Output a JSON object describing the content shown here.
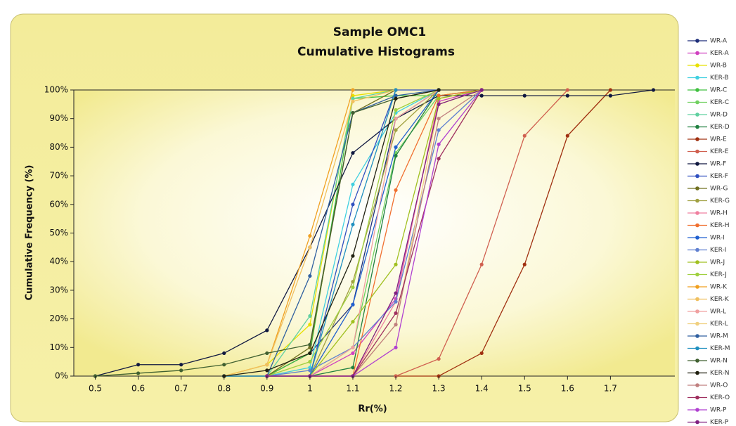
{
  "chart_data": {
    "type": "line",
    "title": "Sample OMC1",
    "subtitle": "Cumulative Histograms",
    "x_label": "Rr(%)",
    "y_label": "Cumulative Frequency (%)",
    "x": [
      0.5,
      0.6,
      0.7,
      0.8,
      0.9,
      1,
      1.1,
      1.2,
      1.3,
      1.4,
      1.5,
      1.6,
      1.7,
      1.8
    ],
    "xlim": [
      0.45,
      1.85
    ],
    "xticks": [
      0.5,
      0.6,
      0.7,
      0.8,
      0.9,
      1,
      1.1,
      1.2,
      1.3,
      1.4,
      1.5,
      1.6,
      1.7
    ],
    "ylim": [
      0,
      100
    ],
    "yticks": [
      {
        "value": 0,
        "label": "0%"
      },
      {
        "value": 10,
        "label": "10%"
      },
      {
        "value": 20,
        "label": "20%"
      },
      {
        "value": 30,
        "label": "30%"
      },
      {
        "value": 40,
        "label": "40%"
      },
      {
        "value": 50,
        "label": "50%"
      },
      {
        "value": 60,
        "label": "60%"
      },
      {
        "value": 70,
        "label": "70%"
      },
      {
        "value": 80,
        "label": "80%"
      },
      {
        "value": 90,
        "label": "90%"
      },
      {
        "value": 100,
        "label": "100%"
      }
    ],
    "legend": "right",
    "series": [
      {
        "name": "WR-A",
        "color": "#1f2f7a",
        "values": [
          null,
          null,
          null,
          0,
          0,
          8,
          25,
          90,
          100,
          null,
          null,
          null,
          null,
          null
        ]
      },
      {
        "name": "KER-A",
        "color": "#d040c0",
        "values": [
          null,
          null,
          null,
          null,
          0,
          0,
          8,
          27,
          96,
          100,
          null,
          null,
          null,
          null
        ]
      },
      {
        "name": "WR-B",
        "color": "#e8e000",
        "values": [
          null,
          null,
          null,
          0,
          4,
          18,
          98,
          100,
          null,
          null,
          null,
          null,
          null,
          null
        ]
      },
      {
        "name": "KER-B",
        "color": "#40d0e0",
        "values": [
          null,
          null,
          null,
          0,
          0,
          3,
          67,
          92,
          100,
          null,
          null,
          null,
          null,
          null
        ]
      },
      {
        "name": "WR-C",
        "color": "#40c040",
        "values": [
          null,
          null,
          null,
          0,
          0,
          8,
          97,
          98,
          98,
          100,
          null,
          null,
          null,
          null
        ]
      },
      {
        "name": "KER-C",
        "color": "#70d060",
        "values": [
          null,
          null,
          null,
          0,
          0,
          0,
          10,
          78,
          98,
          100,
          null,
          null,
          null,
          null
        ]
      },
      {
        "name": "WR-D",
        "color": "#60d0a0",
        "values": [
          null,
          null,
          null,
          0,
          0,
          21,
          97,
          100,
          null,
          null,
          null,
          null,
          null,
          null
        ]
      },
      {
        "name": "KER-D",
        "color": "#208040",
        "values": [
          null,
          null,
          null,
          0,
          0,
          0,
          3,
          77,
          100,
          null,
          null,
          null,
          null,
          null
        ]
      },
      {
        "name": "WR-E",
        "color": "#a03010",
        "values": [
          null,
          null,
          null,
          null,
          null,
          null,
          null,
          0,
          0,
          8,
          39,
          84,
          100,
          null
        ]
      },
      {
        "name": "KER-E",
        "color": "#d06050",
        "values": [
          null,
          null,
          null,
          null,
          null,
          null,
          null,
          0,
          6,
          39,
          84,
          100,
          null,
          null
        ]
      },
      {
        "name": "WR-F",
        "color": "#101840",
        "values": [
          0,
          4,
          4,
          8,
          16,
          45,
          78,
          90,
          98,
          98,
          98,
          98,
          98,
          100
        ]
      },
      {
        "name": "KER-F",
        "color": "#3050c0",
        "values": [
          null,
          null,
          null,
          0,
          0,
          0,
          60,
          100,
          100,
          null,
          null,
          null,
          null,
          null
        ]
      },
      {
        "name": "WR-G",
        "color": "#707020",
        "values": [
          null,
          null,
          null,
          0,
          0,
          10,
          92,
          100,
          null,
          null,
          null,
          null,
          null,
          null
        ]
      },
      {
        "name": "KER-G",
        "color": "#a0a040",
        "values": [
          null,
          null,
          null,
          0,
          0,
          0,
          33,
          86,
          100,
          null,
          null,
          null,
          null,
          null
        ]
      },
      {
        "name": "WR-H",
        "color": "#f080a0",
        "values": [
          null,
          null,
          null,
          null,
          0,
          0,
          0,
          26,
          97,
          100,
          null,
          null,
          null,
          null
        ]
      },
      {
        "name": "KER-H",
        "color": "#f07030",
        "values": [
          null,
          null,
          null,
          null,
          null,
          0,
          0,
          65,
          98,
          100,
          null,
          null,
          null,
          null
        ]
      },
      {
        "name": "WR-I",
        "color": "#2060d0",
        "values": [
          null,
          null,
          null,
          0,
          0,
          0,
          25,
          80,
          100,
          null,
          null,
          null,
          null,
          null
        ]
      },
      {
        "name": "KER-I",
        "color": "#6080d0",
        "values": [
          null,
          null,
          null,
          0,
          0,
          2,
          10,
          26,
          86,
          100,
          null,
          null,
          null,
          null
        ]
      },
      {
        "name": "WR-J",
        "color": "#a0c020",
        "values": [
          null,
          null,
          null,
          0,
          0,
          0,
          19,
          39,
          97,
          100,
          null,
          null,
          null,
          null
        ]
      },
      {
        "name": "KER-J",
        "color": "#a0d040",
        "values": [
          null,
          null,
          null,
          0,
          0,
          5,
          31,
          93,
          100,
          null,
          null,
          null,
          null,
          null
        ]
      },
      {
        "name": "WR-K",
        "color": "#f0a020",
        "values": [
          null,
          null,
          null,
          0,
          4,
          49,
          100,
          null,
          null,
          null,
          null,
          null,
          null,
          null
        ]
      },
      {
        "name": "KER-K",
        "color": "#f0c060",
        "values": [
          null,
          null,
          null,
          0,
          4,
          45,
          96,
          100,
          null,
          null,
          null,
          null,
          null,
          null
        ]
      },
      {
        "name": "WR-L",
        "color": "#f0a0a0",
        "values": [
          null,
          null,
          null,
          0,
          0,
          0,
          10,
          90,
          100,
          null,
          null,
          null,
          null,
          null
        ]
      },
      {
        "name": "KER-L",
        "color": "#f0d080",
        "values": [
          null,
          null,
          null,
          0,
          0,
          0,
          0,
          18,
          95,
          100,
          null,
          null,
          null,
          null
        ]
      },
      {
        "name": "WR-M",
        "color": "#3060a0",
        "values": [
          null,
          null,
          null,
          0,
          0,
          35,
          92,
          98,
          100,
          null,
          null,
          null,
          null,
          null
        ]
      },
      {
        "name": "KER-M",
        "color": "#2090c0",
        "values": [
          null,
          null,
          null,
          0,
          0,
          0,
          53,
          100,
          null,
          null,
          null,
          null,
          null,
          null
        ]
      },
      {
        "name": "WR-N",
        "color": "#406030",
        "values": [
          0,
          1,
          2,
          4,
          8,
          11,
          92,
          97,
          100,
          null,
          null,
          null,
          null,
          null
        ]
      },
      {
        "name": "KER-N",
        "color": "#202010",
        "values": [
          null,
          null,
          null,
          0,
          2,
          8,
          42,
          97,
          100,
          null,
          null,
          null,
          null,
          null
        ]
      },
      {
        "name": "WR-O",
        "color": "#c08080",
        "values": [
          null,
          null,
          null,
          null,
          0,
          0,
          0,
          18,
          90,
          100,
          null,
          null,
          null,
          null
        ]
      },
      {
        "name": "KER-O",
        "color": "#a03060",
        "values": [
          null,
          null,
          null,
          null,
          0,
          0,
          0,
          22,
          76,
          100,
          null,
          null,
          null,
          null
        ]
      },
      {
        "name": "WR-P",
        "color": "#b040d0",
        "values": [
          null,
          null,
          null,
          null,
          0,
          0,
          0,
          10,
          81,
          100,
          null,
          null,
          null,
          null
        ]
      },
      {
        "name": "KER-P",
        "color": "#802080",
        "values": [
          null,
          null,
          null,
          null,
          0,
          0,
          0,
          29,
          95,
          100,
          null,
          null,
          null,
          null
        ]
      }
    ]
  }
}
